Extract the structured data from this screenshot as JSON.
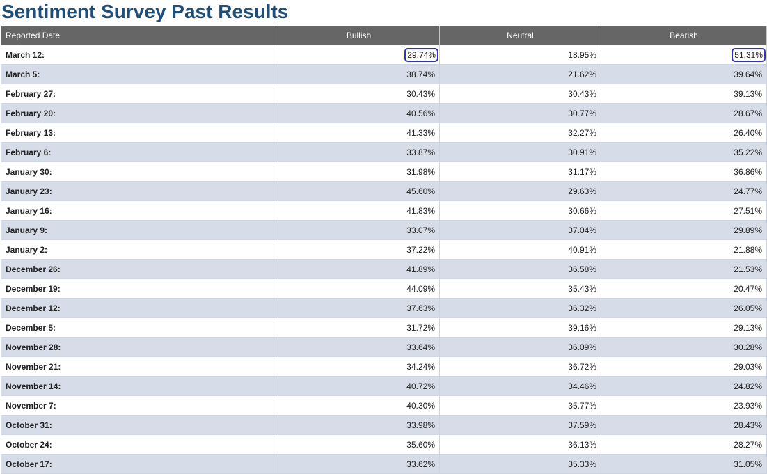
{
  "page": {
    "title": "Sentiment Survey Past Results"
  },
  "colors": {
    "title": "#1f4e79",
    "header_bg": "#666666",
    "header_text": "#ffffff",
    "row_alt_bg": "#d6dde8",
    "highlight_ring": "#3333aa"
  },
  "table": {
    "headers": [
      "Reported Date",
      "Bullish",
      "Neutral",
      "Bearish"
    ],
    "rows": [
      {
        "date": "March 12:",
        "bullish": "29.74%",
        "neutral": "18.95%",
        "bearish": "51.31%",
        "highlighted": [
          "bullish",
          "bearish"
        ]
      },
      {
        "date": "March 5:",
        "bullish": "38.74%",
        "neutral": "21.62%",
        "bearish": "39.64%"
      },
      {
        "date": "February 27:",
        "bullish": "30.43%",
        "neutral": "30.43%",
        "bearish": "39.13%"
      },
      {
        "date": "February 20:",
        "bullish": "40.56%",
        "neutral": "30.77%",
        "bearish": "28.67%"
      },
      {
        "date": "February 13:",
        "bullish": "41.33%",
        "neutral": "32.27%",
        "bearish": "26.40%"
      },
      {
        "date": "February 6:",
        "bullish": "33.87%",
        "neutral": "30.91%",
        "bearish": "35.22%"
      },
      {
        "date": "January 30:",
        "bullish": "31.98%",
        "neutral": "31.17%",
        "bearish": "36.86%"
      },
      {
        "date": "January 23:",
        "bullish": "45.60%",
        "neutral": "29.63%",
        "bearish": "24.77%"
      },
      {
        "date": "January 16:",
        "bullish": "41.83%",
        "neutral": "30.66%",
        "bearish": "27.51%"
      },
      {
        "date": "January 9:",
        "bullish": "33.07%",
        "neutral": "37.04%",
        "bearish": "29.89%"
      },
      {
        "date": "January 2:",
        "bullish": "37.22%",
        "neutral": "40.91%",
        "bearish": "21.88%"
      },
      {
        "date": "December 26:",
        "bullish": "41.89%",
        "neutral": "36.58%",
        "bearish": "21.53%"
      },
      {
        "date": "December 19:",
        "bullish": "44.09%",
        "neutral": "35.43%",
        "bearish": "20.47%"
      },
      {
        "date": "December 12:",
        "bullish": "37.63%",
        "neutral": "36.32%",
        "bearish": "26.05%"
      },
      {
        "date": "December 5:",
        "bullish": "31.72%",
        "neutral": "39.16%",
        "bearish": "29.13%"
      },
      {
        "date": "November 28:",
        "bullish": "33.64%",
        "neutral": "36.09%",
        "bearish": "30.28%"
      },
      {
        "date": "November 21:",
        "bullish": "34.24%",
        "neutral": "36.72%",
        "bearish": "29.03%"
      },
      {
        "date": "November 14:",
        "bullish": "40.72%",
        "neutral": "34.46%",
        "bearish": "24.82%"
      },
      {
        "date": "November 7:",
        "bullish": "40.30%",
        "neutral": "35.77%",
        "bearish": "23.93%"
      },
      {
        "date": "October 31:",
        "bullish": "33.98%",
        "neutral": "37.59%",
        "bearish": "28.43%"
      },
      {
        "date": "October 24:",
        "bullish": "35.60%",
        "neutral": "36.13%",
        "bearish": "28.27%"
      },
      {
        "date": "October 17:",
        "bullish": "33.62%",
        "neutral": "35.33%",
        "bearish": "31.05%"
      }
    ]
  }
}
